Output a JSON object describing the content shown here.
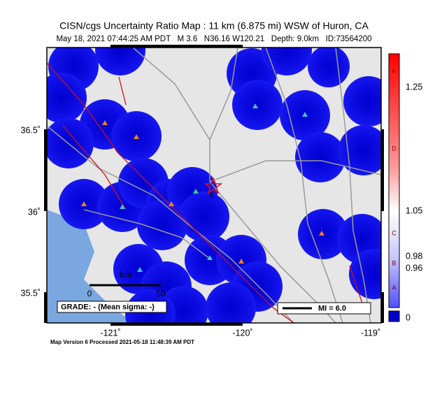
{
  "header": {
    "title": "CISN/cgs Uncertainty Ratio Map : 11 km (6.875 mi) WSW of Huron, CA",
    "subtitle": "May 18, 2021 07:44:25 AM PDT   M 3.6   N36.16 W120.21   Depth: 9.0km   ID:73564200"
  },
  "latitude_labels": [
    "36.5˚",
    "36˚",
    "35.5˚"
  ],
  "longitude_labels": [
    "-121˚",
    "-120˚",
    "-119˚"
  ],
  "colorbar": {
    "labels": [
      "1.25",
      "1.05",
      "0.98",
      "0.96",
      "0"
    ],
    "grades": [
      "F",
      "D",
      "C",
      "B",
      "A"
    ]
  },
  "scale_bar": {
    "unit": "km",
    "start": "0",
    "end": "50"
  },
  "grade_box": "GRADE: - (Mean sigma: -)",
  "mi_box": "MI = 6.0",
  "epicenter_label": "5",
  "footer": "Map Version 6 Processed 2021-05-18 11:48:39 AM PDT"
}
